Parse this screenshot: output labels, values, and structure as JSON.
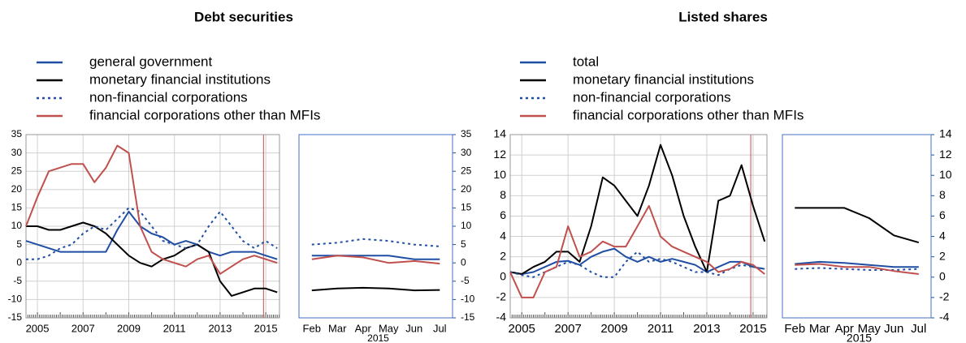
{
  "chart_data": [
    {
      "type": "line",
      "title": "Debt securities",
      "x": [
        2004.5,
        2005,
        2005.5,
        2006,
        2006.5,
        2007,
        2007.5,
        2008,
        2008.5,
        2009,
        2009.5,
        2010,
        2010.5,
        2011,
        2011.5,
        2012,
        2012.5,
        2013,
        2013.5,
        2014,
        2014.5,
        2015,
        2015.5
      ],
      "xlim": [
        2004.5,
        2015.6
      ],
      "xticks": [
        2005,
        2007,
        2009,
        2011,
        2013,
        2015
      ],
      "ylim": [
        -15,
        35
      ],
      "yticks": [
        -15,
        -10,
        -5,
        0,
        5,
        10,
        15,
        20,
        25,
        30,
        35
      ],
      "grid": true,
      "highlight": [
        2014.9,
        2015.6
      ],
      "series": [
        {
          "name": "general government",
          "color": "#1f4ea3",
          "dash": "solid",
          "values": [
            6,
            5,
            4,
            3,
            3,
            3,
            3,
            3,
            9,
            14,
            10,
            8,
            7,
            5,
            6,
            5,
            3,
            2,
            3,
            3,
            3,
            2,
            1
          ]
        },
        {
          "name": "monetary financial institutions",
          "color": "#000000",
          "dash": "solid",
          "values": [
            10,
            10,
            9,
            9,
            10,
            11,
            10,
            8,
            5,
            2,
            0,
            -1,
            1,
            2,
            4,
            5,
            3,
            -5,
            -9,
            -8,
            -7,
            -7,
            -8
          ]
        },
        {
          "name": "non-financial corporations",
          "color": "#1f4ea3",
          "dash": "dotted",
          "values": [
            1,
            1,
            2,
            4,
            5,
            8,
            10,
            9,
            12,
            15,
            14,
            10,
            6,
            5,
            4,
            5,
            10,
            14,
            10,
            6,
            4,
            6,
            4
          ]
        },
        {
          "name": "financial corporations other than MFIs",
          "color": "#c0504d",
          "dash": "solid",
          "values": [
            10,
            18,
            25,
            26,
            27,
            27,
            22,
            26,
            32,
            30,
            10,
            3,
            1,
            0,
            -1,
            1,
            2,
            -3,
            -1,
            1,
            2,
            1,
            0
          ]
        }
      ]
    },
    {
      "type": "line",
      "categories": [
        "Feb",
        "Mar",
        "Apr",
        "May",
        "Jun",
        "Jul"
      ],
      "xlabel": "2015",
      "ylim": [
        -15,
        35
      ],
      "yticks": [
        -15,
        -10,
        -5,
        0,
        5,
        10,
        15,
        20,
        25,
        30,
        35
      ],
      "series": [
        {
          "color": "#1f4ea3",
          "dash": "solid",
          "values": [
            2,
            2,
            2,
            2,
            1,
            1
          ]
        },
        {
          "color": "#000000",
          "dash": "solid",
          "values": [
            -7.5,
            -7,
            -6.8,
            -7,
            -7.5,
            -7.4
          ]
        },
        {
          "color": "#1f4ea3",
          "dash": "dotted",
          "values": [
            5,
            5.5,
            6.5,
            6,
            5,
            4.5
          ]
        },
        {
          "color": "#c0504d",
          "dash": "solid",
          "values": [
            1,
            2,
            1.5,
            0,
            0.5,
            -0.2
          ]
        }
      ]
    },
    {
      "type": "line",
      "title": "Listed shares",
      "x": [
        2004.5,
        2005,
        2005.5,
        2006,
        2006.5,
        2007,
        2007.5,
        2008,
        2008.5,
        2009,
        2009.5,
        2010,
        2010.5,
        2011,
        2011.5,
        2012,
        2012.5,
        2013,
        2013.5,
        2014,
        2014.5,
        2015,
        2015.5
      ],
      "xlim": [
        2004.5,
        2015.6
      ],
      "xticks": [
        2005,
        2007,
        2009,
        2011,
        2013,
        2015
      ],
      "ylim": [
        -4,
        14
      ],
      "yticks": [
        -4,
        -2,
        0,
        2,
        4,
        6,
        8,
        10,
        12,
        14
      ],
      "grid": true,
      "highlight": [
        2014.9,
        2015.6
      ],
      "series": [
        {
          "name": "total",
          "color": "#1f4ea3",
          "dash": "solid",
          "values": [
            0.5,
            0.3,
            0.5,
            1,
            1.5,
            1.6,
            1.2,
            2,
            2.5,
            2.8,
            2,
            1.5,
            2,
            1.5,
            1.8,
            1.5,
            1.2,
            0.5,
            1,
            1.5,
            1.5,
            1,
            0.8
          ]
        },
        {
          "name": "monetary financial institutions",
          "color": "#000000",
          "dash": "solid",
          "values": [
            0.5,
            0.3,
            1,
            1.5,
            2.5,
            2.5,
            1.5,
            5,
            9.8,
            9,
            7.5,
            6,
            9,
            13,
            10,
            6,
            3,
            0.5,
            7.5,
            8,
            11,
            7,
            3.5
          ]
        },
        {
          "name": "non-financial corporations",
          "color": "#1f4ea3",
          "dash": "dotted",
          "values": [
            0.5,
            0.2,
            0,
            0.5,
            1,
            1.5,
            1.2,
            0.5,
            0,
            0,
            1.5,
            2.5,
            1.5,
            1.8,
            1.5,
            1,
            0.5,
            0.5,
            0.2,
            0.8,
            1.2,
            1,
            0.8
          ]
        },
        {
          "name": "financial corporations other than MFIs",
          "color": "#c0504d",
          "dash": "solid",
          "values": [
            0.5,
            -2,
            -2,
            0.5,
            1,
            5,
            2,
            2.5,
            3.5,
            3,
            3,
            5,
            7,
            4,
            3,
            2.5,
            2,
            1.5,
            0.5,
            0.8,
            1.5,
            1.2,
            0.3
          ]
        }
      ]
    },
    {
      "type": "line",
      "categories": [
        "Feb",
        "Mar",
        "Apr",
        "May",
        "Jun",
        "Jul"
      ],
      "xlabel": "2015",
      "ylim": [
        -4,
        14
      ],
      "yticks": [
        -4,
        -2,
        0,
        2,
        4,
        6,
        8,
        10,
        12,
        14
      ],
      "series": [
        {
          "color": "#1f4ea3",
          "dash": "solid",
          "values": [
            1.3,
            1.5,
            1.4,
            1.2,
            1.0,
            1.0
          ]
        },
        {
          "color": "#000000",
          "dash": "solid",
          "values": [
            6.8,
            6.8,
            6.8,
            5.8,
            4.1,
            3.4
          ]
        },
        {
          "color": "#1f4ea3",
          "dash": "dotted",
          "values": [
            0.8,
            0.9,
            0.8,
            0.7,
            0.7,
            0.8
          ]
        },
        {
          "color": "#c0504d",
          "dash": "solid",
          "values": [
            1.2,
            1.3,
            1.0,
            1.0,
            0.6,
            0.3
          ]
        }
      ]
    }
  ]
}
